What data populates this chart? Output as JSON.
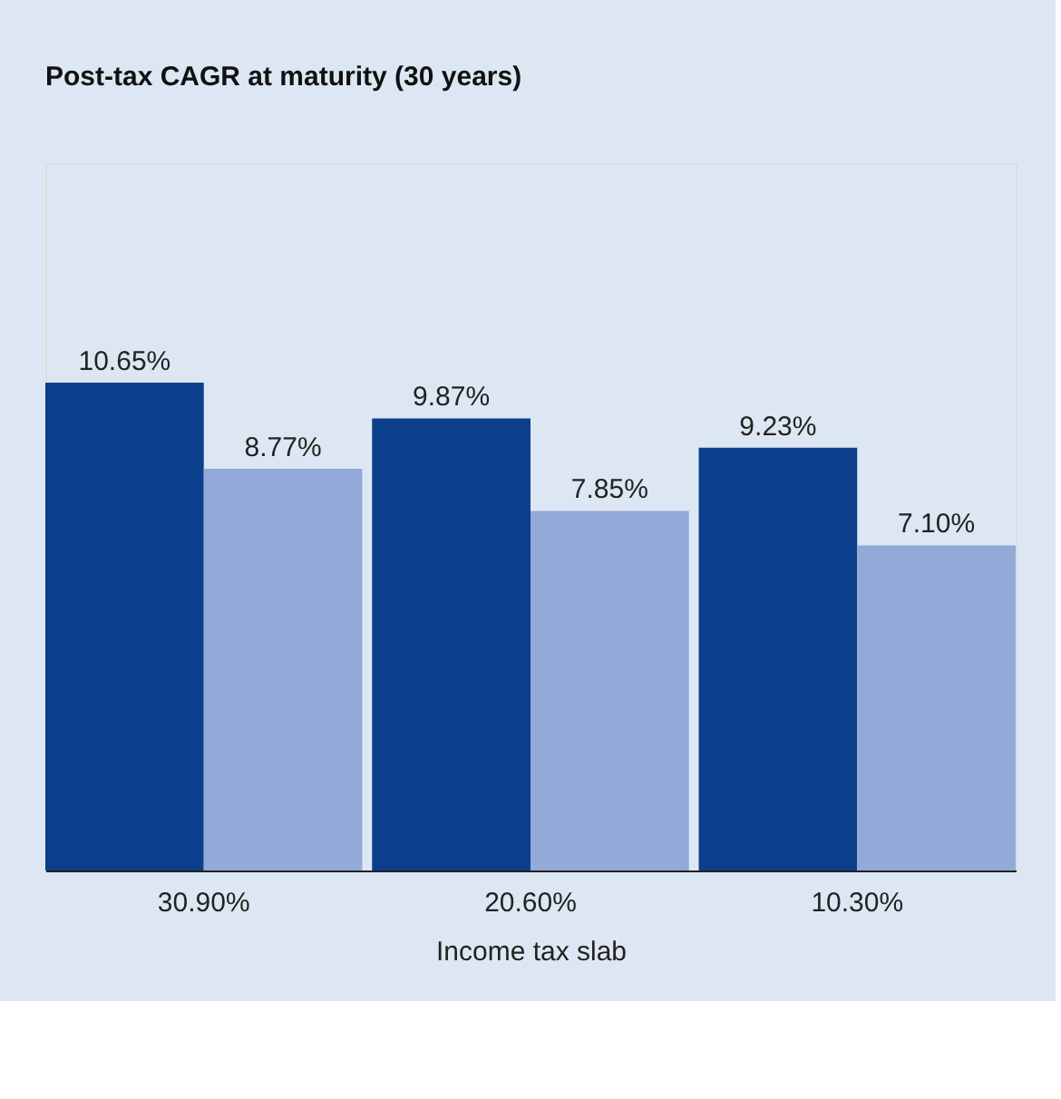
{
  "chart_data": {
    "type": "bar",
    "title": "Post-tax CAGR at maturity (30 years)",
    "xlabel": "Income tax slab",
    "categories": [
      "30.90%",
      "20.60%",
      "10.30%"
    ],
    "series": [
      {
        "color": "#0b3f8c",
        "values": [
          10.65,
          9.87,
          9.23
        ],
        "value_labels": [
          "10.65%",
          "9.87%",
          "9.23%"
        ]
      },
      {
        "color": "#93aad8",
        "values": [
          8.77,
          7.85,
          7.1
        ],
        "value_labels": [
          "8.77%",
          "7.85%",
          "7.10%"
        ]
      }
    ],
    "legend": false,
    "grid": false
  }
}
